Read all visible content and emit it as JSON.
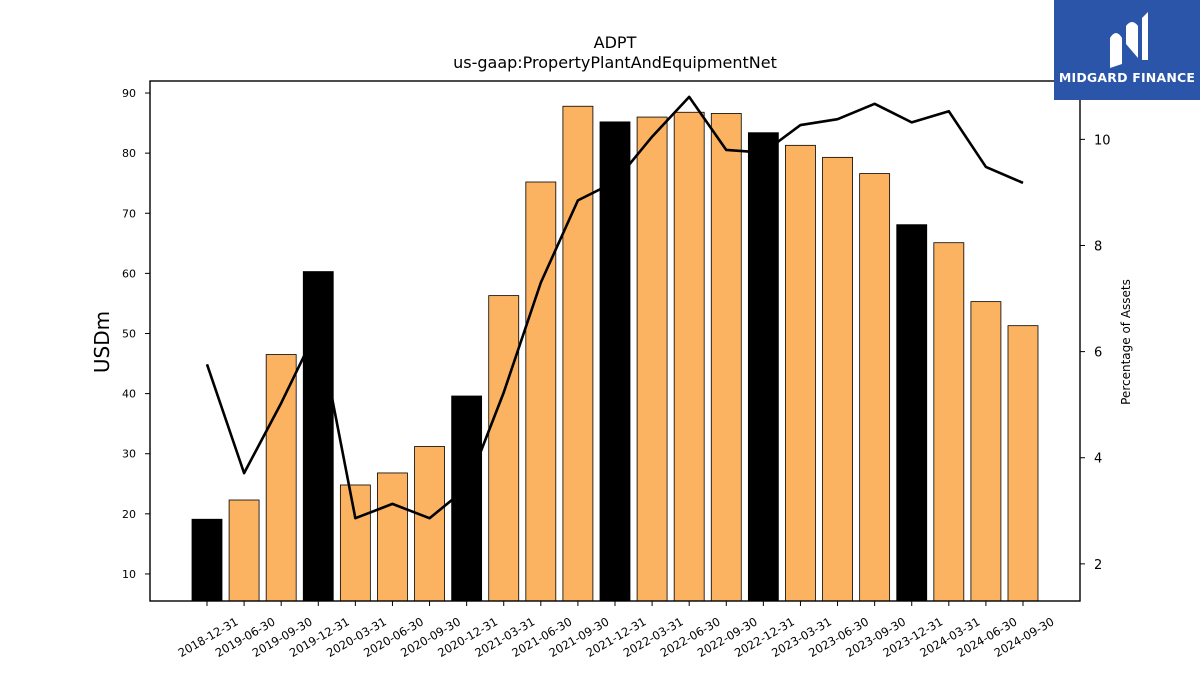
{
  "chart_data": {
    "type": "bar",
    "title": "ADPT",
    "subtitle": "us-gaap:PropertyPlantAndEquipmentNet",
    "ylabel": "USDm",
    "y2label": "Percentage of Assets",
    "categories": [
      "2018-12-31",
      "2019-06-30",
      "2019-09-30",
      "2019-12-31",
      "2020-03-31",
      "2020-06-30",
      "2020-09-30",
      "2020-12-31",
      "2021-03-31",
      "2021-06-30",
      "2021-09-30",
      "2021-12-31",
      "2022-03-31",
      "2022-06-30",
      "2022-09-30",
      "2022-12-31",
      "2023-03-31",
      "2023-06-30",
      "2023-09-30",
      "2023-12-31",
      "2024-03-31",
      "2024-06-30",
      "2024-09-30"
    ],
    "series": [
      {
        "axis": "left",
        "kind": "bar",
        "values": [
          19.1,
          22.3,
          46.5,
          60.3,
          24.8,
          26.8,
          31.2,
          39.6,
          56.3,
          75.2,
          87.8,
          85.2,
          86.0,
          86.8,
          86.6,
          83.4,
          81.3,
          79.3,
          76.6,
          68.1,
          65.1,
          55.3,
          51.3
        ],
        "colors": [
          "#000000",
          "#fbb362",
          "#fbb362",
          "#000000",
          "#fbb362",
          "#fbb362",
          "#fbb362",
          "#000000",
          "#fbb362",
          "#fbb362",
          "#fbb362",
          "#000000",
          "#fbb362",
          "#fbb362",
          "#fbb362",
          "#000000",
          "#fbb362",
          "#fbb362",
          "#fbb362",
          "#000000",
          "#fbb362",
          "#fbb362",
          "#fbb362"
        ]
      },
      {
        "axis": "right",
        "kind": "line",
        "color": "#000000",
        "values": [
          5.76,
          3.71,
          5.03,
          6.47,
          2.86,
          3.13,
          2.86,
          3.43,
          5.23,
          7.3,
          8.85,
          9.2,
          10.05,
          10.8,
          9.8,
          9.75,
          10.27,
          10.38,
          10.67,
          10.32,
          10.53,
          9.48,
          9.18
        ]
      }
    ],
    "ylim": [
      5.5,
      92
    ],
    "y2lim": [
      1.3,
      11.1
    ],
    "yticks": [
      10,
      20,
      30,
      40,
      50,
      60,
      70,
      80,
      90
    ],
    "y2ticks": [
      2,
      4,
      6,
      8,
      10
    ],
    "grid": false,
    "colors": {
      "bar_highlight": "#000000",
      "bar_default": "#fbb362",
      "line": "#000000"
    }
  },
  "logo": {
    "text": "MIDGARD FINANCE",
    "background": "#2a55a8"
  }
}
